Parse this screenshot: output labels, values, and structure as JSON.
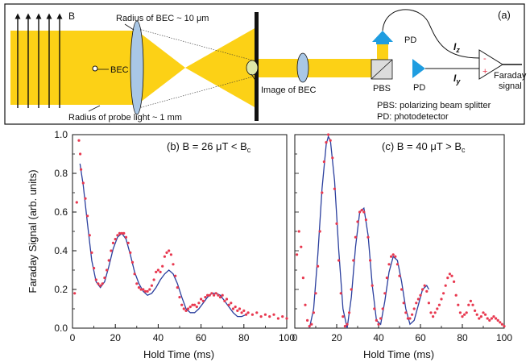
{
  "panel_a": {
    "label": "(a)",
    "field_label": "B",
    "bec_radius": "Radius of BEC ~ 10 μm",
    "bec_label": "BEC",
    "probe_radius": "Radius of probe light ~ 1 mm",
    "image_label": "Image of BEC",
    "pd_top": "PD",
    "pd_right": "PD",
    "pbs": "PBS",
    "iz": "Iz",
    "iy": "Iy",
    "minus": "-",
    "plus": "+",
    "faraday_1": "Faraday",
    "faraday_2": "signal",
    "legend_pbs": "PBS: polarizing beam splitter",
    "legend_pd": "PD:  photodetector",
    "colors": {
      "beam": "#fcd116",
      "lens": "#a9c7e6",
      "arrow": "#1f9de0",
      "bec": "#dfe8a8"
    }
  },
  "chart_data": [
    {
      "type": "scatter",
      "title": "(b) B = 26 μT < Bc",
      "xlabel": "Hold Time (ms)",
      "ylabel": "Faraday Signal (arb. units)",
      "xlim": [
        0,
        100
      ],
      "ylim": [
        0,
        1.0
      ],
      "xticks": [
        "0",
        "20",
        "40",
        "60",
        "80",
        "100"
      ],
      "yticks": [
        "0.0",
        "0.2",
        "0.4",
        "0.6",
        "0.8",
        "1.0"
      ],
      "series": [
        {
          "kind": "data-points",
          "color": "#e8384f",
          "points": [
            [
              1,
              0.18
            ],
            [
              2,
              0.65
            ],
            [
              3,
              0.97
            ],
            [
              3.6,
              0.9
            ],
            [
              4,
              0.82
            ],
            [
              5,
              0.75
            ],
            [
              6,
              0.67
            ],
            [
              7,
              0.58
            ],
            [
              8,
              0.48
            ],
            [
              9,
              0.39
            ],
            [
              10,
              0.31
            ],
            [
              11,
              0.25
            ],
            [
              12,
              0.23
            ],
            [
              13,
              0.22
            ],
            [
              14,
              0.23
            ],
            [
              15,
              0.26
            ],
            [
              16,
              0.3
            ],
            [
              17,
              0.35
            ],
            [
              18,
              0.4
            ],
            [
              19,
              0.44
            ],
            [
              20,
              0.46
            ],
            [
              21,
              0.48
            ],
            [
              22,
              0.49
            ],
            [
              23,
              0.49
            ],
            [
              24,
              0.49
            ],
            [
              25,
              0.47
            ],
            [
              26,
              0.44
            ],
            [
              27,
              0.39
            ],
            [
              28,
              0.34
            ],
            [
              29,
              0.28
            ],
            [
              30,
              0.23
            ],
            [
              31,
              0.21
            ],
            [
              32,
              0.2
            ],
            [
              33,
              0.2
            ],
            [
              34,
              0.19
            ],
            [
              35,
              0.19
            ],
            [
              36,
              0.2
            ],
            [
              37,
              0.22
            ],
            [
              38,
              0.25
            ],
            [
              39,
              0.29
            ],
            [
              40,
              0.3
            ],
            [
              41,
              0.29
            ],
            [
              42,
              0.32
            ],
            [
              43,
              0.37
            ],
            [
              44,
              0.39
            ],
            [
              45,
              0.4
            ],
            [
              46,
              0.38
            ],
            [
              47,
              0.33
            ],
            [
              48,
              0.27
            ],
            [
              49,
              0.21
            ],
            [
              50,
              0.16
            ],
            [
              51,
              0.12
            ],
            [
              52,
              0.1
            ],
            [
              53,
              0.09
            ],
            [
              54,
              0.1
            ],
            [
              55,
              0.11
            ],
            [
              56,
              0.12
            ],
            [
              57,
              0.12
            ],
            [
              58,
              0.11
            ],
            [
              59,
              0.13
            ],
            [
              60,
              0.15
            ],
            [
              61,
              0.14
            ],
            [
              62,
              0.16
            ],
            [
              63,
              0.17
            ],
            [
              64,
              0.17
            ],
            [
              65,
              0.18
            ],
            [
              66,
              0.17
            ],
            [
              67,
              0.18
            ],
            [
              68,
              0.17
            ],
            [
              69,
              0.16
            ],
            [
              70,
              0.17
            ],
            [
              71,
              0.14
            ],
            [
              72,
              0.15
            ],
            [
              73,
              0.12
            ],
            [
              74,
              0.13
            ],
            [
              75,
              0.1
            ],
            [
              76,
              0.11
            ],
            [
              77,
              0.09
            ],
            [
              78,
              0.1
            ],
            [
              79,
              0.08
            ],
            [
              80,
              0.09
            ],
            [
              81,
              0.07
            ],
            [
              82,
              0.08
            ],
            [
              84,
              0.07
            ],
            [
              86,
              0.08
            ],
            [
              88,
              0.06
            ],
            [
              90,
              0.07
            ],
            [
              92,
              0.06
            ],
            [
              94,
              0.07
            ],
            [
              96,
              0.05
            ],
            [
              98,
              0.06
            ],
            [
              100,
              0.05
            ]
          ]
        },
        {
          "kind": "fit-curve",
          "color": "#2b3f9e",
          "points": [
            [
              3.5,
              0.85
            ],
            [
              5,
              0.74
            ],
            [
              7,
              0.54
            ],
            [
              9,
              0.35
            ],
            [
              11,
              0.24
            ],
            [
              13,
              0.21
            ],
            [
              15,
              0.24
            ],
            [
              17,
              0.32
            ],
            [
              19,
              0.41
            ],
            [
              21,
              0.47
            ],
            [
              23,
              0.49
            ],
            [
              25,
              0.46
            ],
            [
              27,
              0.38
            ],
            [
              29,
              0.29
            ],
            [
              31,
              0.23
            ],
            [
              33,
              0.19
            ],
            [
              35,
              0.17
            ],
            [
              37,
              0.18
            ],
            [
              39,
              0.21
            ],
            [
              41,
              0.25
            ],
            [
              43,
              0.28
            ],
            [
              45,
              0.3
            ],
            [
              47,
              0.28
            ],
            [
              49,
              0.23
            ],
            [
              51,
              0.16
            ],
            [
              53,
              0.1
            ],
            [
              55,
              0.08
            ],
            [
              57,
              0.08
            ],
            [
              59,
              0.1
            ],
            [
              61,
              0.13
            ],
            [
              63,
              0.16
            ],
            [
              65,
              0.18
            ],
            [
              67,
              0.18
            ],
            [
              69,
              0.17
            ],
            [
              71,
              0.14
            ],
            [
              73,
              0.11
            ],
            [
              75,
              0.08
            ],
            [
              77,
              0.06
            ],
            [
              79,
              0.06
            ],
            [
              81,
              0.07
            ],
            [
              82,
              0.08
            ]
          ]
        }
      ]
    },
    {
      "type": "scatter",
      "title": "(c) B = 40 μT > Bc",
      "xlabel": "Hold Time (ms)",
      "xlim": [
        0,
        100
      ],
      "ylim": [
        0,
        1.0
      ],
      "xticks": [
        "0",
        "20",
        "40",
        "60",
        "80",
        "100"
      ],
      "series": [
        {
          "kind": "data-points",
          "color": "#e8384f",
          "points": [
            [
              1,
              0.38
            ],
            [
              2,
              0.5
            ],
            [
              3,
              0.42
            ],
            [
              4,
              0.26
            ],
            [
              5,
              0.12
            ],
            [
              6,
              0.04
            ],
            [
              7,
              0.01
            ],
            [
              8,
              0.02
            ],
            [
              9,
              0.08
            ],
            [
              10,
              0.18
            ],
            [
              11,
              0.32
            ],
            [
              12,
              0.5
            ],
            [
              13,
              0.7
            ],
            [
              14,
              0.86
            ],
            [
              15,
              0.96
            ],
            [
              16,
              1.0
            ],
            [
              17,
              0.97
            ],
            [
              18,
              0.88
            ],
            [
              19,
              0.72
            ],
            [
              20,
              0.54
            ],
            [
              21,
              0.35
            ],
            [
              22,
              0.18
            ],
            [
              23,
              0.06
            ],
            [
              24,
              0.01
            ],
            [
              25,
              0.02
            ],
            [
              26,
              0.08
            ],
            [
              27,
              0.2
            ],
            [
              28,
              0.35
            ],
            [
              29,
              0.47
            ],
            [
              30,
              0.55
            ],
            [
              31,
              0.6
            ],
            [
              32,
              0.61
            ],
            [
              33,
              0.6
            ],
            [
              34,
              0.56
            ],
            [
              35,
              0.47
            ],
            [
              36,
              0.35
            ],
            [
              37,
              0.22
            ],
            [
              38,
              0.1
            ],
            [
              39,
              0.04
            ],
            [
              40,
              0.02
            ],
            [
              41,
              0.05
            ],
            [
              42,
              0.1
            ],
            [
              43,
              0.18
            ],
            [
              44,
              0.26
            ],
            [
              45,
              0.33
            ],
            [
              46,
              0.37
            ],
            [
              47,
              0.38
            ],
            [
              48,
              0.37
            ],
            [
              49,
              0.33
            ],
            [
              50,
              0.27
            ],
            [
              51,
              0.2
            ],
            [
              52,
              0.13
            ],
            [
              53,
              0.08
            ],
            [
              54,
              0.05
            ],
            [
              55,
              0.05
            ],
            [
              56,
              0.07
            ],
            [
              57,
              0.1
            ],
            [
              58,
              0.13
            ],
            [
              59,
              0.15
            ],
            [
              60,
              0.17
            ],
            [
              61,
              0.2
            ],
            [
              62,
              0.22
            ],
            [
              63,
              0.19
            ],
            [
              64,
              0.13
            ],
            [
              65,
              0.08
            ],
            [
              66,
              0.06
            ],
            [
              67,
              0.08
            ],
            [
              68,
              0.1
            ],
            [
              69,
              0.12
            ],
            [
              70,
              0.15
            ],
            [
              71,
              0.18
            ],
            [
              72,
              0.22
            ],
            [
              73,
              0.26
            ],
            [
              74,
              0.28
            ],
            [
              75,
              0.27
            ],
            [
              76,
              0.24
            ],
            [
              77,
              0.17
            ],
            [
              78,
              0.12
            ],
            [
              79,
              0.08
            ],
            [
              80,
              0.06
            ],
            [
              81,
              0.07
            ],
            [
              82,
              0.08
            ],
            [
              83,
              0.12
            ],
            [
              84,
              0.14
            ],
            [
              85,
              0.12
            ],
            [
              86,
              0.09
            ],
            [
              87,
              0.07
            ],
            [
              88,
              0.05
            ],
            [
              89,
              0.06
            ],
            [
              90,
              0.08
            ],
            [
              91,
              0.07
            ],
            [
              92,
              0.05
            ],
            [
              93,
              0.04
            ],
            [
              94,
              0.05
            ],
            [
              95,
              0.06
            ],
            [
              96,
              0.05
            ],
            [
              97,
              0.04
            ],
            [
              98,
              0.03
            ],
            [
              99,
              0.02
            ],
            [
              100,
              0.01
            ]
          ]
        },
        {
          "kind": "fit-curve",
          "color": "#2b3f9e",
          "points": [
            [
              7,
              0
            ],
            [
              9,
              0.1
            ],
            [
              11,
              0.38
            ],
            [
              13,
              0.72
            ],
            [
              15,
              0.95
            ],
            [
              16,
              0.99
            ],
            [
              17,
              0.97
            ],
            [
              19,
              0.76
            ],
            [
              21,
              0.4
            ],
            [
              23,
              0.1
            ],
            [
              25,
              0
            ],
            [
              27,
              0.16
            ],
            [
              29,
              0.42
            ],
            [
              31,
              0.6
            ],
            [
              33,
              0.62
            ],
            [
              35,
              0.48
            ],
            [
              37,
              0.22
            ],
            [
              39,
              0.04
            ],
            [
              41,
              0.02
            ],
            [
              43,
              0.14
            ],
            [
              45,
              0.29
            ],
            [
              47,
              0.37
            ],
            [
              49,
              0.35
            ],
            [
              51,
              0.24
            ],
            [
              53,
              0.1
            ],
            [
              55,
              0.02
            ],
            [
              57,
              0.04
            ],
            [
              59,
              0.12
            ],
            [
              61,
              0.2
            ],
            [
              63,
              0.22
            ],
            [
              64,
              0.2
            ]
          ]
        }
      ]
    }
  ]
}
